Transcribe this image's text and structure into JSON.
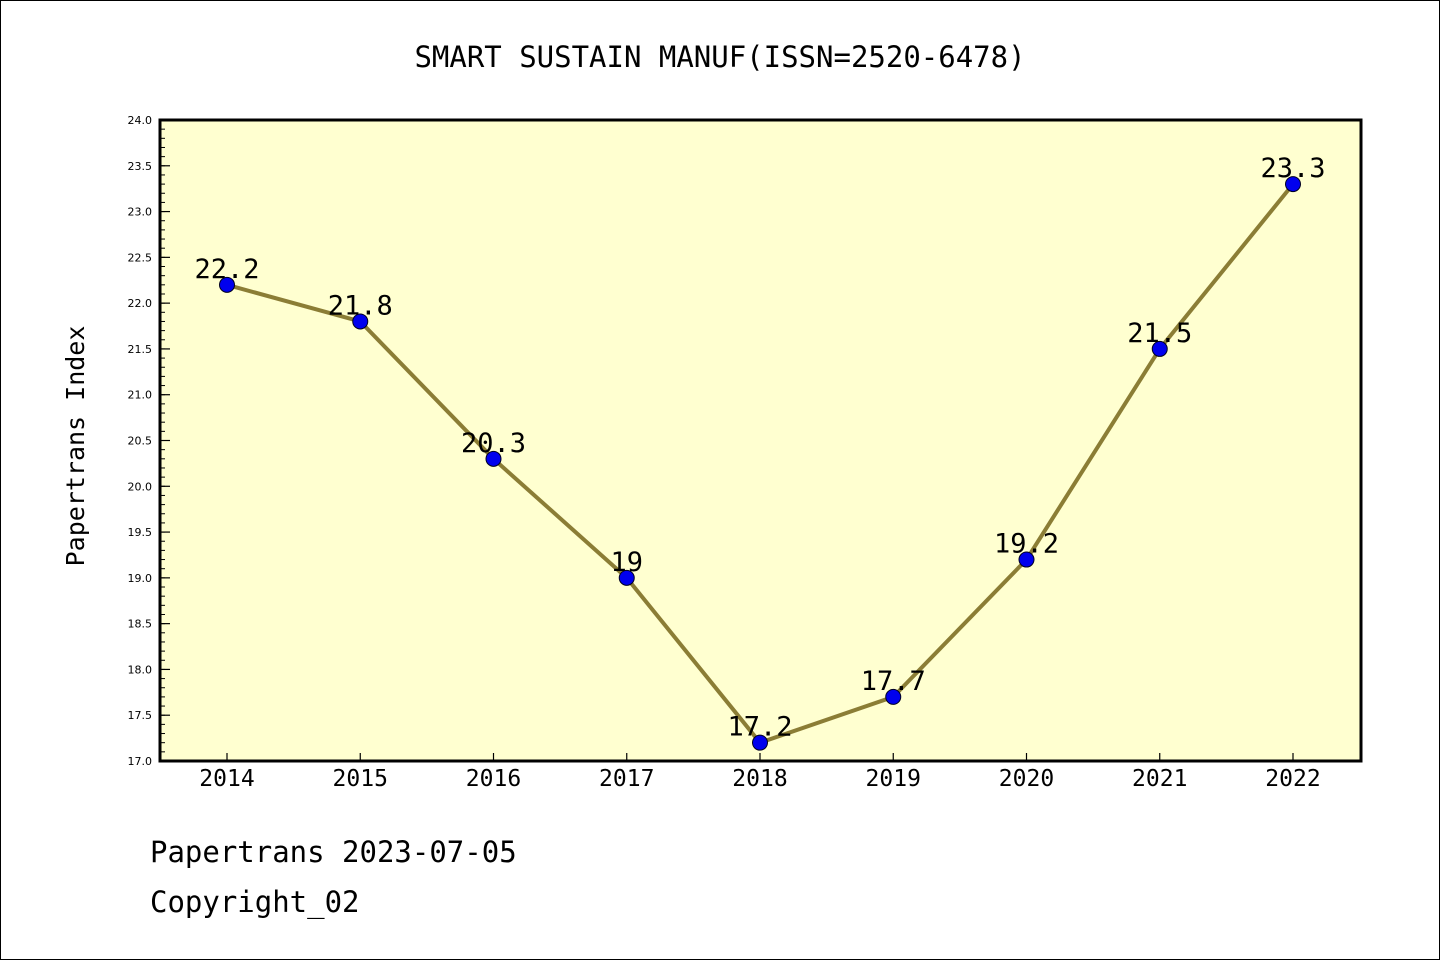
{
  "chart_data": {
    "type": "line",
    "title": "SMART SUSTAIN MANUF(ISSN=2520-6478)",
    "xlabel": "",
    "ylabel": "Papertrans Index",
    "x": [
      "2014",
      "2015",
      "2016",
      "2017",
      "2018",
      "2019",
      "2020",
      "2021",
      "2022"
    ],
    "series": [
      {
        "values": [
          22.2,
          21.8,
          20.3,
          19,
          17.2,
          17.7,
          19.2,
          21.5,
          23.3
        ],
        "labels": [
          "22.2",
          "21.8",
          "20.3",
          "19",
          "17.2",
          "17.7",
          "19.2",
          "21.5",
          "23.3"
        ]
      }
    ],
    "ylim": [
      17.0,
      24.0
    ],
    "yticks": [
      17.0,
      17.5,
      18.0,
      18.5,
      19.0,
      19.5,
      20.0,
      20.5,
      21.0,
      21.5,
      22.0,
      22.5,
      23.0,
      23.5,
      24.0
    ],
    "ytick_labels": [
      "17.0",
      "17.5",
      "18.0",
      "18.5",
      "19.0",
      "19.5",
      "20.0",
      "20.5",
      "21.0",
      "21.5",
      "22.0",
      "22.5",
      "23.0",
      "23.5",
      "24.0"
    ],
    "grid": false,
    "legend": "none",
    "colors": {
      "plot_background": "#ffffd0",
      "line": "#8b7d35",
      "marker": "#0000ee"
    }
  },
  "footer": {
    "line1": "Papertrans 2023-07-05",
    "line2": "Copyright_02"
  }
}
